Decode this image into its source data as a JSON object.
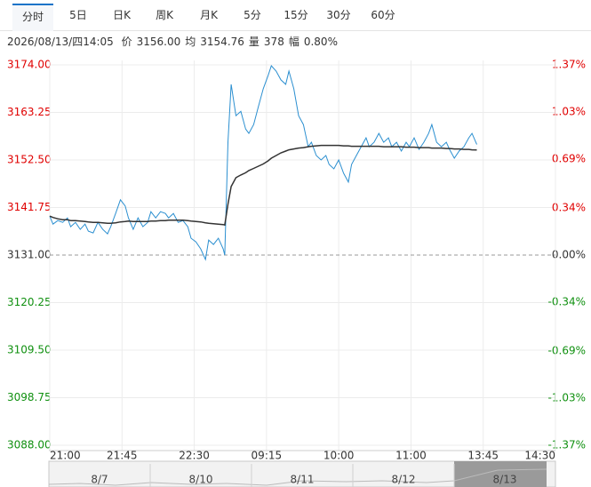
{
  "tabs": {
    "items": [
      "分时",
      "5日",
      "日K",
      "周K",
      "月K",
      "5分",
      "15分",
      "30分",
      "60分"
    ],
    "active": 0
  },
  "info": {
    "time": "2026/08/13/四14:05",
    "fields": [
      {
        "label": "价",
        "value": "3156.00"
      },
      {
        "label": "均",
        "value": "3154.76"
      },
      {
        "label": "量",
        "value": "378"
      },
      {
        "label": "幅",
        "value": "0.80%"
      }
    ]
  },
  "chart_data": {
    "type": "line",
    "x": [
      0,
      2,
      5,
      8,
      11,
      13,
      16,
      19,
      22,
      24,
      27,
      30,
      33,
      36,
      38,
      41,
      44,
      47,
      49,
      52,
      55,
      58,
      61,
      63,
      66,
      69,
      72,
      74,
      77,
      80,
      83,
      86,
      88,
      91,
      94,
      97,
      99,
      102,
      105,
      108,
      109,
      111,
      113,
      116,
      119,
      122,
      124,
      127,
      130,
      133,
      136,
      138,
      141,
      144,
      147,
      149,
      152,
      155,
      158,
      161,
      163,
      166,
      169,
      172,
      174,
      177,
      180,
      183,
      186,
      188,
      191,
      194,
      197,
      199,
      202,
      205,
      208,
      211,
      213,
      216,
      219,
      222,
      224,
      227,
      230,
      233,
      236,
      238,
      241,
      244,
      247,
      249,
      252,
      255,
      258,
      261,
      263,
      266
    ],
    "series": [
      {
        "color": "#2b8fd0",
        "values": [
          3139.8,
          3138.0,
          3138.8,
          3138.4,
          3139.4,
          3137.4,
          3138.4,
          3136.8,
          3138.0,
          3136.4,
          3136.0,
          3138.4,
          3136.8,
          3135.8,
          3137.4,
          3140.4,
          3143.5,
          3142.1,
          3139.4,
          3136.8,
          3139.4,
          3137.4,
          3138.4,
          3140.8,
          3139.4,
          3140.8,
          3140.4,
          3139.4,
          3140.4,
          3138.4,
          3138.8,
          3137.4,
          3134.8,
          3134.0,
          3132.4,
          3130.0,
          3134.4,
          3133.4,
          3134.8,
          3132.4,
          3131.0,
          3156.5,
          3169.6,
          3162.5,
          3163.5,
          3159.5,
          3158.5,
          3160.5,
          3164.6,
          3168.6,
          3171.6,
          3173.8,
          3172.6,
          3170.6,
          3169.6,
          3172.6,
          3168.6,
          3162.5,
          3160.5,
          3155.5,
          3156.5,
          3153.5,
          3152.5,
          3153.5,
          3151.5,
          3150.5,
          3152.5,
          3149.5,
          3147.5,
          3151.5,
          3153.5,
          3155.5,
          3157.5,
          3155.5,
          3156.5,
          3158.5,
          3156.5,
          3157.5,
          3155.5,
          3156.5,
          3154.5,
          3156.5,
          3155.5,
          3157.5,
          3154.9,
          3156.5,
          3158.5,
          3160.5,
          3156.5,
          3155.5,
          3156.5,
          3154.9,
          3152.9,
          3154.5,
          3155.5,
          3157.5,
          3158.5,
          3156.0
        ]
      },
      {
        "color": "#333333",
        "values": [
          3139.8,
          3139.5,
          3139.2,
          3139.0,
          3139.0,
          3138.8,
          3138.8,
          3138.7,
          3138.6,
          3138.5,
          3138.4,
          3138.4,
          3138.3,
          3138.2,
          3138.2,
          3138.3,
          3138.5,
          3138.6,
          3138.7,
          3138.6,
          3138.6,
          3138.6,
          3138.6,
          3138.7,
          3138.7,
          3138.8,
          3138.8,
          3138.9,
          3138.9,
          3138.9,
          3138.9,
          3138.8,
          3138.7,
          3138.6,
          3138.5,
          3138.3,
          3138.2,
          3138.1,
          3138.0,
          3137.9,
          3137.8,
          3142.5,
          3146.5,
          3148.5,
          3149.1,
          3149.6,
          3150.1,
          3150.6,
          3151.1,
          3151.6,
          3152.3,
          3152.9,
          3153.5,
          3154.1,
          3154.5,
          3154.8,
          3155.0,
          3155.2,
          3155.3,
          3155.5,
          3155.6,
          3155.7,
          3155.8,
          3155.8,
          3155.8,
          3155.8,
          3155.8,
          3155.7,
          3155.7,
          3155.6,
          3155.6,
          3155.6,
          3155.6,
          3155.6,
          3155.6,
          3155.6,
          3155.5,
          3155.5,
          3155.5,
          3155.5,
          3155.5,
          3155.4,
          3155.4,
          3155.4,
          3155.3,
          3155.3,
          3155.3,
          3155.2,
          3155.2,
          3155.2,
          3155.1,
          3155.1,
          3155.0,
          3155.0,
          3154.9,
          3154.9,
          3154.8,
          3154.76
        ]
      }
    ],
    "xlim": [
      0,
      315
    ],
    "xticks": [
      {
        "value": 0,
        "label": "21:00"
      },
      {
        "value": 45,
        "label": "21:45"
      },
      {
        "value": 90,
        "label": "22:30"
      },
      {
        "value": 135,
        "label": "09:15"
      },
      {
        "value": 180,
        "label": "10:00"
      },
      {
        "value": 225,
        "label": "11:00"
      },
      {
        "value": 270,
        "label": "13:45"
      },
      {
        "value": 315,
        "label": "14:30"
      }
    ],
    "ylim": [
      3088,
      3174
    ],
    "yticks": [
      {
        "value": 3174,
        "label": "3174.00"
      },
      3163.25,
      {
        "value": 3152.5,
        "label": "3152.50"
      },
      3141.75,
      {
        "value": 3131,
        "label": "3131.00"
      },
      3120.25,
      {
        "value": 3109.5,
        "label": "3109.50"
      },
      3098.75,
      {
        "value": 3088,
        "label": "3088.00"
      }
    ],
    "y2lim": [
      -1.37,
      1.37
    ],
    "y2ticks": [
      {
        "value": 1.37,
        "label": "1.37%"
      },
      {
        "value": 1.03,
        "label": "1.03%"
      },
      {
        "value": 0.69,
        "label": "0.69%"
      },
      {
        "value": 0.34,
        "label": "0.34%"
      },
      {
        "value": 0,
        "label": "0.00%"
      },
      {
        "value": -0.34,
        "label": "-0.34%"
      },
      {
        "value": -0.69,
        "label": "-0.69%"
      },
      {
        "value": -1.03,
        "label": "-1.03%"
      },
      {
        "value": -1.37,
        "label": "-1.37%"
      }
    ],
    "baseline": 3131,
    "up_color": "#e00000",
    "down_color": "#109010",
    "grid": true,
    "navigator": [
      "8/7",
      "8/10",
      "8/11",
      "8/12",
      "8/13"
    ]
  }
}
